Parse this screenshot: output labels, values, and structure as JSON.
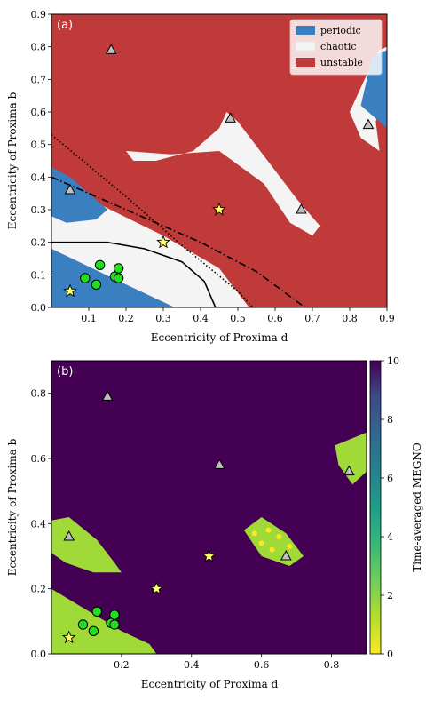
{
  "chart_data": [
    {
      "panel": "(a)",
      "type": "heatmap",
      "xlabel": "Eccentricity of Proxima d",
      "ylabel": "Eccentricity of Proxima b",
      "xlim": [
        0.0,
        0.9
      ],
      "ylim": [
        0.0,
        0.9
      ],
      "xticks": [
        "0.1",
        "0.2",
        "0.3",
        "0.4",
        "0.5",
        "0.6",
        "0.7",
        "0.8",
        "0.9"
      ],
      "yticks": [
        "0.0",
        "0.1",
        "0.2",
        "0.3",
        "0.4",
        "0.5",
        "0.6",
        "0.7",
        "0.8",
        "0.9"
      ],
      "legend_position": "top-right",
      "legend": [
        {
          "label": "periodic",
          "color": "#3a7fbf"
        },
        {
          "label": "chaotic",
          "color": "#f4f4f4"
        },
        {
          "label": "unstable",
          "color": "#c03a3a"
        }
      ],
      "regions": {
        "background": "unstable",
        "periodic": [
          [
            [
              0.0,
              0.18
            ],
            [
              0.2,
              0.07
            ],
            [
              0.33,
              0.0
            ],
            [
              0.0,
              0.0
            ]
          ],
          [
            [
              0.0,
              0.43
            ],
            [
              0.05,
              0.4
            ],
            [
              0.12,
              0.33
            ],
            [
              0.15,
              0.3
            ],
            [
              0.12,
              0.27
            ],
            [
              0.04,
              0.26
            ],
            [
              0.0,
              0.28
            ]
          ],
          [
            [
              0.86,
              0.77
            ],
            [
              0.9,
              0.79
            ],
            [
              0.9,
              0.55
            ],
            [
              0.83,
              0.62
            ]
          ]
        ],
        "chaotic": [
          [
            [
              0.0,
              0.4
            ],
            [
              0.14,
              0.31
            ],
            [
              0.3,
              0.22
            ],
            [
              0.45,
              0.12
            ],
            [
              0.53,
              0.0
            ],
            [
              0.33,
              0.0
            ],
            [
              0.2,
              0.07
            ],
            [
              0.0,
              0.18
            ]
          ],
          [
            [
              0.2,
              0.48
            ],
            [
              0.32,
              0.47
            ],
            [
              0.45,
              0.48
            ],
            [
              0.57,
              0.38
            ],
            [
              0.64,
              0.26
            ],
            [
              0.7,
              0.22
            ],
            [
              0.72,
              0.25
            ],
            [
              0.66,
              0.33
            ],
            [
              0.58,
              0.45
            ],
            [
              0.5,
              0.57
            ],
            [
              0.47,
              0.6
            ],
            [
              0.45,
              0.55
            ],
            [
              0.38,
              0.48
            ],
            [
              0.28,
              0.45
            ],
            [
              0.22,
              0.45
            ]
          ],
          [
            [
              0.8,
              0.6
            ],
            [
              0.84,
              0.7
            ],
            [
              0.88,
              0.79
            ],
            [
              0.9,
              0.8
            ],
            [
              0.9,
              0.7
            ],
            [
              0.87,
              0.57
            ],
            [
              0.88,
              0.48
            ],
            [
              0.83,
              0.52
            ]
          ]
        ]
      },
      "curves": [
        {
          "style": "solid",
          "points": [
            [
              0.0,
              0.2
            ],
            [
              0.15,
              0.2
            ],
            [
              0.25,
              0.18
            ],
            [
              0.35,
              0.14
            ],
            [
              0.41,
              0.08
            ],
            [
              0.44,
              0.0
            ]
          ]
        },
        {
          "style": "dotted",
          "points": [
            [
              0.0,
              0.53
            ],
            [
              0.2,
              0.34
            ],
            [
              0.35,
              0.19
            ],
            [
              0.5,
              0.05
            ],
            [
              0.54,
              0.0
            ]
          ]
        },
        {
          "style": "dashdot",
          "points": [
            [
              0.0,
              0.4
            ],
            [
              0.2,
              0.3
            ],
            [
              0.4,
              0.2
            ],
            [
              0.55,
              0.11
            ],
            [
              0.68,
              0.0
            ]
          ]
        }
      ],
      "markers": {
        "stars": [
          [
            0.05,
            0.05
          ],
          [
            0.3,
            0.2
          ],
          [
            0.45,
            0.3
          ]
        ],
        "triangles": [
          [
            0.05,
            0.36
          ],
          [
            0.16,
            0.79
          ],
          [
            0.48,
            0.58
          ],
          [
            0.67,
            0.3
          ],
          [
            0.85,
            0.56
          ]
        ],
        "circles": [
          [
            0.09,
            0.09
          ],
          [
            0.12,
            0.07
          ],
          [
            0.13,
            0.13
          ],
          [
            0.17,
            0.095
          ],
          [
            0.18,
            0.09
          ],
          [
            0.18,
            0.12
          ]
        ]
      }
    },
    {
      "panel": "(b)",
      "type": "heatmap",
      "xlabel": "Eccentricity of Proxima d",
      "ylabel": "Eccentricity of Proxima b",
      "colorbar_label": "Time-averaged MEGNO",
      "colorbar_range": [
        0,
        10
      ],
      "colorbar_ticks": [
        "0",
        "2",
        "4",
        "6",
        "8",
        "10"
      ],
      "xlim": [
        0.0,
        0.9
      ],
      "ylim": [
        0.0,
        0.9
      ],
      "xticks": [
        "0.2",
        "0.4",
        "0.6",
        "0.8"
      ],
      "yticks": [
        "0.0",
        "0.2",
        "0.4",
        "0.6",
        "0.8"
      ],
      "background_megno": 10,
      "green_megno": 2,
      "yellow_megno": 0.5,
      "regions": {
        "green": [
          [
            [
              0.0,
              0.2
            ],
            [
              0.2,
              0.07
            ],
            [
              0.28,
              0.03
            ],
            [
              0.3,
              0.0
            ],
            [
              0.0,
              0.0
            ]
          ],
          [
            [
              0.0,
              0.41
            ],
            [
              0.05,
              0.42
            ],
            [
              0.13,
              0.35
            ],
            [
              0.18,
              0.28
            ],
            [
              0.2,
              0.25
            ],
            [
              0.12,
              0.25
            ],
            [
              0.04,
              0.28
            ],
            [
              0.0,
              0.31
            ]
          ],
          [
            [
              0.55,
              0.38
            ],
            [
              0.6,
              0.42
            ],
            [
              0.67,
              0.37
            ],
            [
              0.72,
              0.3
            ],
            [
              0.68,
              0.27
            ],
            [
              0.6,
              0.3
            ]
          ],
          [
            [
              0.81,
              0.64
            ],
            [
              0.9,
              0.68
            ],
            [
              0.9,
              0.56
            ],
            [
              0.86,
              0.52
            ],
            [
              0.82,
              0.58
            ]
          ]
        ]
      },
      "markers": {
        "stars": [
          [
            0.05,
            0.05
          ],
          [
            0.3,
            0.2
          ],
          [
            0.45,
            0.3
          ]
        ],
        "triangles": [
          [
            0.05,
            0.36
          ],
          [
            0.16,
            0.79
          ],
          [
            0.48,
            0.58
          ],
          [
            0.67,
            0.3
          ],
          [
            0.85,
            0.56
          ]
        ],
        "circles": [
          [
            0.09,
            0.09
          ],
          [
            0.12,
            0.07
          ],
          [
            0.13,
            0.13
          ],
          [
            0.17,
            0.095
          ],
          [
            0.18,
            0.09
          ],
          [
            0.18,
            0.12
          ]
        ]
      }
    }
  ]
}
